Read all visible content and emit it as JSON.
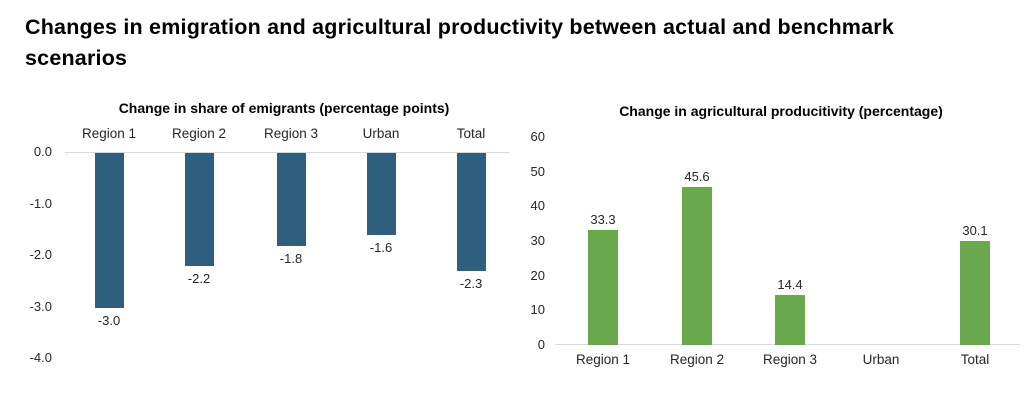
{
  "page_title": "Changes in emigration and agricultural productivity between actual and benchmark scenarios",
  "colors": {
    "emigrants_bar": "#2f5f7e",
    "productivity_bar": "#69a84c",
    "axis_line": "#d9d9d9",
    "text": "#262626",
    "title_text": "#000000",
    "background": "#ffffff"
  },
  "chart_data": [
    {
      "type": "bar",
      "title": "Change in share of emigrants (percentage points)",
      "categories": [
        "Region 1",
        "Region 2",
        "Region 3",
        "Urban",
        "Total"
      ],
      "values": [
        -3.0,
        -2.2,
        -1.8,
        -1.6,
        -2.3
      ],
      "data_labels": [
        "-3.0",
        "-2.2",
        "-1.8",
        "-1.6",
        "-2.3"
      ],
      "ylabel": "",
      "xlabel": "",
      "ylim": [
        -4.0,
        0.0
      ],
      "yticks": [
        "0.0",
        "-1.0",
        "-2.0",
        "-3.0",
        "-4.0"
      ],
      "bar_color": "#2f5f7e",
      "category_label_position": "top",
      "value_label_position": "below-bar",
      "grid": false,
      "legend": "none"
    },
    {
      "type": "bar",
      "title": "Change in agricultural producitivity (percentage)",
      "categories": [
        "Region 1",
        "Region 2",
        "Region 3",
        "Urban",
        "Total"
      ],
      "values": [
        33.3,
        45.6,
        14.4,
        0,
        30.1
      ],
      "data_labels": [
        "33.3",
        "45.6",
        "14.4",
        "",
        "30.1"
      ],
      "ylabel": "",
      "xlabel": "",
      "ylim": [
        0,
        60
      ],
      "yticks": [
        "60",
        "50",
        "40",
        "30",
        "20",
        "10",
        "0"
      ],
      "bar_color": "#69a84c",
      "category_label_position": "bottom",
      "value_label_position": "above-bar",
      "grid": false,
      "legend": "none"
    }
  ]
}
